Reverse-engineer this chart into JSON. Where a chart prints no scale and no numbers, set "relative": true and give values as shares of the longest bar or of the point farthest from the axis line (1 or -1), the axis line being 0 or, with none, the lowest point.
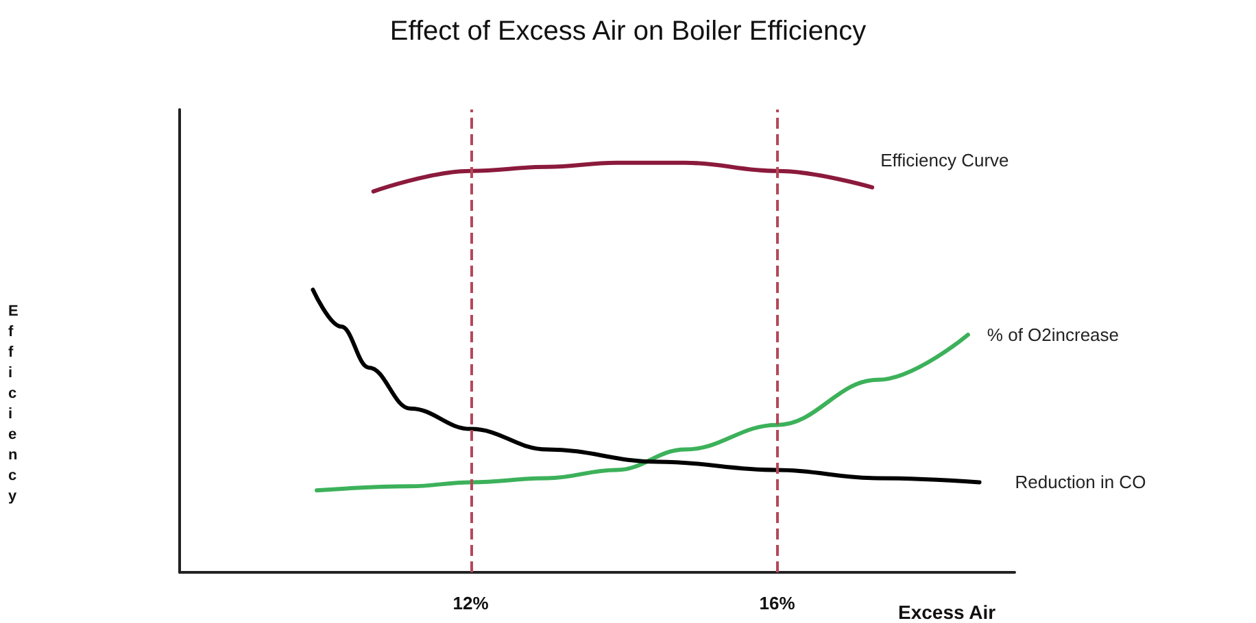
{
  "chart_data": {
    "type": "line",
    "title": "Effect of Excess Air on Boiler Efficiency",
    "xlabel": "Excess Air",
    "ylabel": "Efficiency",
    "relative": true,
    "xlim": [
      8.2,
      19.1
    ],
    "xticks": [
      {
        "value": 12,
        "label": "12%"
      },
      {
        "value": 16,
        "label": "16%"
      }
    ],
    "grid": false,
    "legend": false,
    "marker": "none",
    "line_style": "solid",
    "ref_lines": [
      {
        "axis": "x",
        "value": 12,
        "color": "#b5475a",
        "line_style": "dashed"
      },
      {
        "axis": "x",
        "value": 16,
        "color": "#b5475a",
        "line_style": "dashed"
      }
    ],
    "series": [
      {
        "name": "Efficiency Curve",
        "color": "#8b1a3c",
        "x": [
          10.73,
          12,
          13.0,
          13.9,
          14.8,
          16,
          17.24
        ],
        "values": [
          0.93,
          0.98,
          0.99,
          1,
          1.0,
          0.98,
          0.94
        ]
      },
      {
        "name": "% of O2increase",
        "color": "#3cb15a",
        "x": [
          9.99,
          11.21,
          12,
          13.0,
          13.9,
          14.8,
          16,
          17.31,
          18.49
        ],
        "values": [
          0.2,
          0.21,
          0.22,
          0.23,
          0.25,
          0.3,
          0.36,
          0.47,
          0.58
        ]
      },
      {
        "name": "Reduction in CO",
        "color": "#000000",
        "x": [
          9.94,
          10.31,
          10.67,
          11.21,
          12,
          13.0,
          14.44,
          16,
          17.31,
          18.64
        ],
        "values": [
          0.69,
          0.6,
          0.5,
          0.4,
          0.35,
          0.3,
          0.27,
          0.25,
          0.23,
          0.22
        ]
      }
    ]
  }
}
